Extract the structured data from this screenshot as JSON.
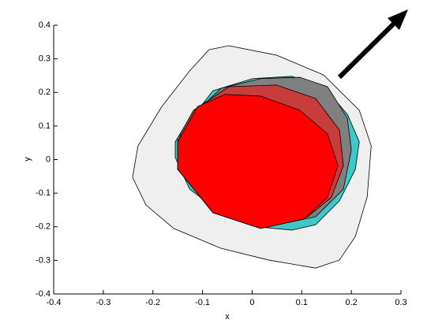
{
  "chart_data": {
    "type": "polygon",
    "xlabel": "x",
    "ylabel": "y",
    "xlim": [
      -0.4,
      0.3
    ],
    "ylim": [
      -0.4,
      0.4
    ],
    "xticks": [
      -0.4,
      -0.3,
      -0.2,
      -0.1,
      0,
      0.1,
      0.2,
      0.3
    ],
    "yticks": [
      -0.4,
      -0.3,
      -0.2,
      -0.1,
      0,
      0.1,
      0.2,
      0.3,
      0.4
    ],
    "series": [
      {
        "color": "#efefef",
        "x": [
          -0.047,
          0.049,
          0.144,
          0.216,
          0.24,
          0.232,
          0.208,
          0.176,
          0.128,
          0.033,
          -0.063,
          -0.158,
          -0.214,
          -0.241,
          -0.23,
          -0.182,
          -0.126,
          -0.087
        ],
        "values": [
          0.339,
          0.311,
          0.252,
          0.147,
          0.041,
          -0.111,
          -0.229,
          -0.299,
          -0.323,
          -0.299,
          -0.264,
          -0.205,
          -0.135,
          -0.053,
          0.041,
          0.158,
          0.264,
          0.327
        ]
      },
      {
        "color": "#3ec8c8",
        "x": [
          -0.134,
          -0.079,
          0.001,
          0.08,
          0.144,
          0.192,
          0.216,
          0.208,
          0.176,
          0.128,
          0.08,
          0.017,
          -0.063,
          -0.126,
          -0.155,
          -0.155
        ],
        "values": [
          0.1,
          0.205,
          0.241,
          0.248,
          0.217,
          0.135,
          0.053,
          -0.029,
          -0.123,
          -0.194,
          -0.21,
          -0.201,
          -0.158,
          -0.088,
          0.006,
          0.053
        ]
      },
      {
        "color": "#808080",
        "x": [
          -0.126,
          -0.063,
          0.017,
          0.096,
          0.152,
          0.192,
          0.2,
          0.184,
          0.128,
          0.017,
          -0.079,
          -0.15,
          -0.15
        ],
        "values": [
          0.123,
          0.212,
          0.241,
          0.245,
          0.217,
          0.123,
          0.029,
          -0.088,
          -0.17,
          -0.205,
          -0.158,
          -0.029,
          0.065
        ]
      },
      {
        "color": "#c83c3c",
        "x": [
          -0.118,
          -0.047,
          0.049,
          0.128,
          0.176,
          0.184,
          0.16,
          0.112,
          0.017,
          -0.079,
          -0.15,
          -0.145
        ],
        "values": [
          0.147,
          0.217,
          0.222,
          0.182,
          0.088,
          -0.018,
          -0.112,
          -0.17,
          -0.205,
          -0.158,
          -0.029,
          0.076
        ]
      },
      {
        "color": "#ff0000",
        "x": [
          -0.11,
          -0.055,
          0.017,
          0.096,
          0.152,
          0.173,
          0.152,
          0.104,
          0.017,
          -0.079,
          -0.15,
          -0.15
        ],
        "values": [
          0.158,
          0.194,
          0.189,
          0.147,
          0.076,
          -0.018,
          -0.112,
          -0.177,
          -0.205,
          -0.158,
          -0.029,
          0.053
        ]
      }
    ]
  }
}
